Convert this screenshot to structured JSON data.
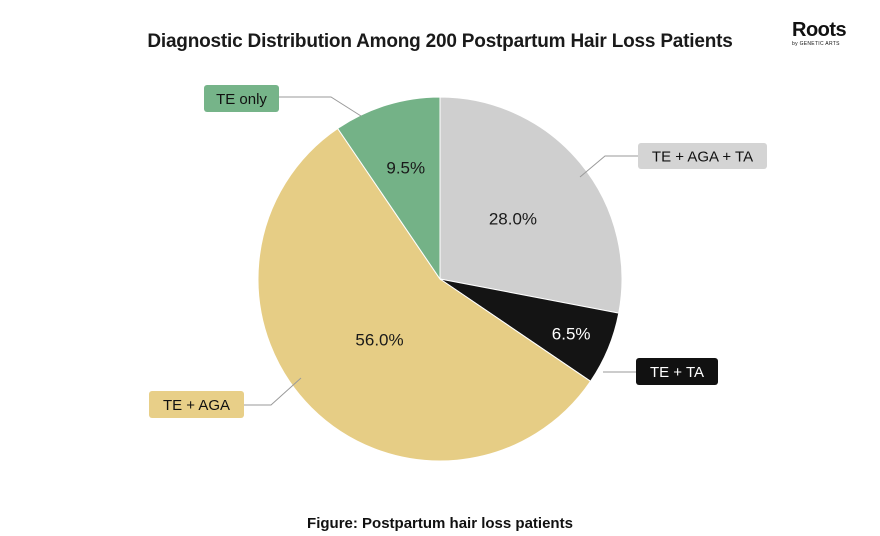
{
  "chart_data": {
    "type": "pie",
    "title": "Diagnostic Distribution Among 200 Postpartum Hair Loss Patients",
    "caption": "Figure: Postpartum hair loss patients",
    "slices": [
      {
        "label": "TE + AGA + TA",
        "value": 28.0,
        "value_label": "28.0%",
        "color": "#cfcfcf",
        "text_color": "#1a1a1a",
        "tag_bg": "#d4d4d4",
        "tag_color": "#111111"
      },
      {
        "label": "TE + TA",
        "value": 6.5,
        "value_label": "6.5%",
        "color": "#141414",
        "text_color": "#ffffff",
        "tag_bg": "#111111",
        "tag_color": "#ffffff"
      },
      {
        "label": "TE + AGA",
        "value": 56.0,
        "value_label": "56.0%",
        "color": "#e6cd85",
        "text_color": "#1a1a1a",
        "tag_bg": "#e8cf88",
        "tag_color": "#111111"
      },
      {
        "label": "TE only",
        "value": 9.5,
        "value_label": "9.5%",
        "color": "#74b287",
        "text_color": "#1a1a1a",
        "tag_bg": "#76b489",
        "tag_color": "#111111"
      }
    ]
  },
  "logo": {
    "main": "Roots",
    "sub": "by GENETIC ARTS"
  }
}
